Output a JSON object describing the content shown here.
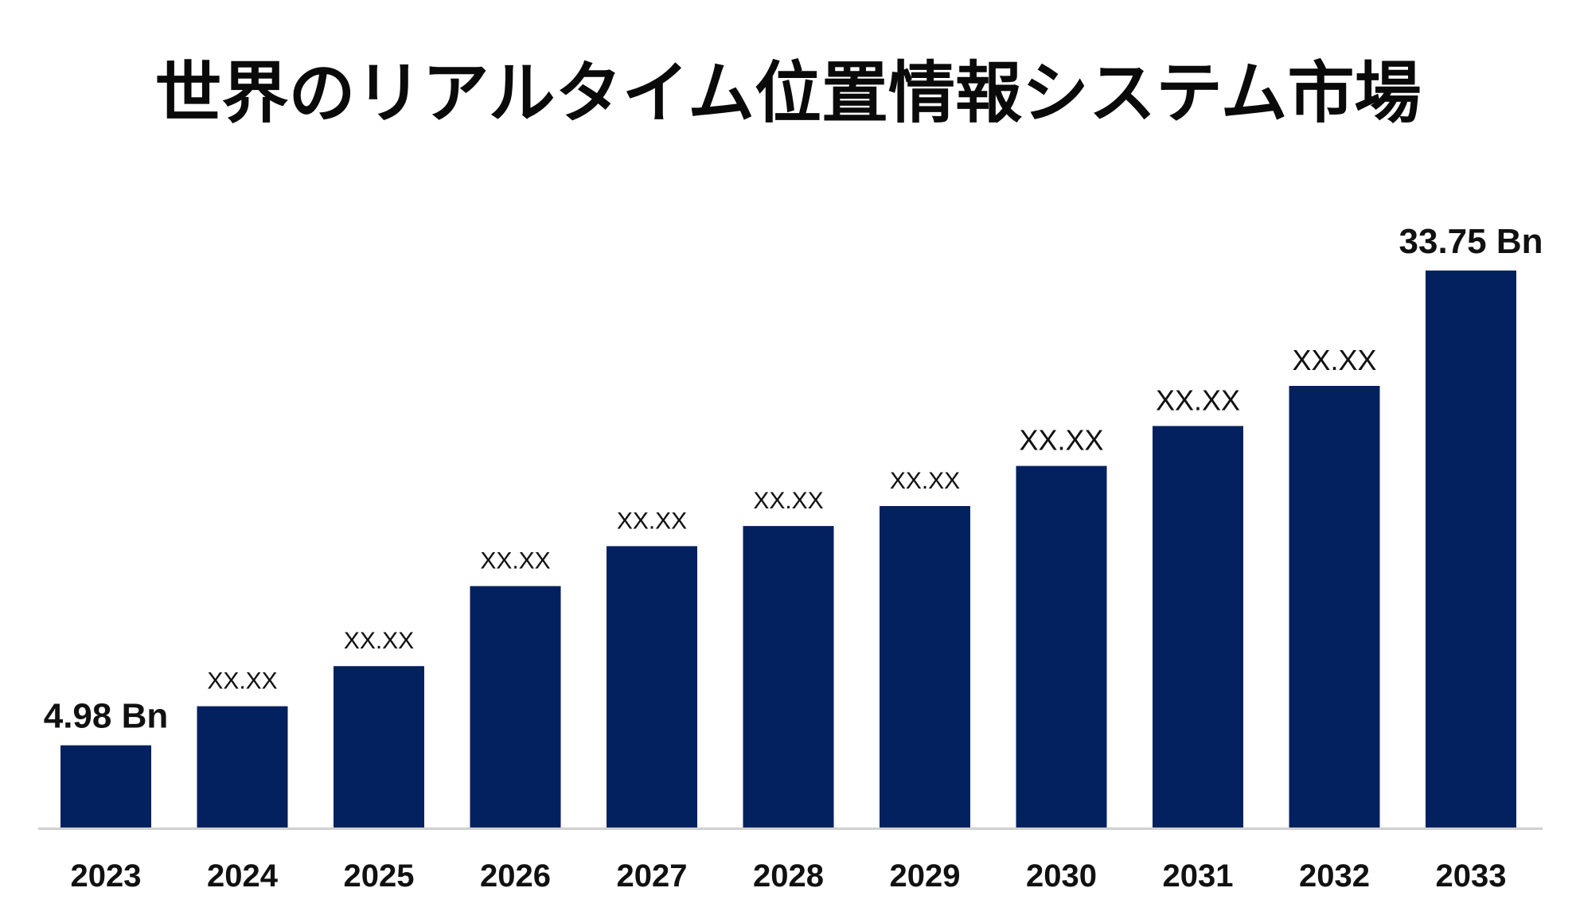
{
  "colors": {
    "bar": "#03215f",
    "axis": "#d0d0d0",
    "text": "#111111"
  },
  "chart_data": {
    "type": "bar",
    "title": "世界のリアルタイム位置情報システム市場",
    "categories": [
      "2023",
      "2024",
      "2025",
      "2026",
      "2027",
      "2028",
      "2029",
      "2030",
      "2031",
      "2032",
      "2033"
    ],
    "values": [
      4.98,
      7.35,
      9.78,
      14.63,
      17.05,
      18.27,
      19.48,
      21.91,
      24.33,
      26.76,
      33.75
    ],
    "data_labels": [
      "4.98 Bn",
      "XX.XX",
      "XX.XX",
      "XX.XX",
      "XX.XX",
      "XX.XX",
      "XX.XX",
      "XX.XX",
      "XX.XX",
      "XX.XX",
      "33.75 Bn"
    ],
    "ylim": [
      0,
      33.75
    ],
    "grid": false,
    "xlabel": "",
    "ylabel": ""
  }
}
